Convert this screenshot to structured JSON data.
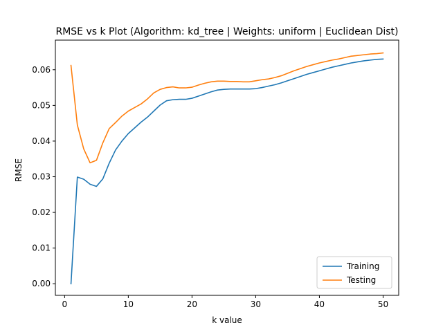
{
  "chart_data": {
    "type": "line",
    "title": "RMSE vs k Plot (Algorithm: kd_tree | Weights: uniform | Euclidean Dist)",
    "xlabel": "k value",
    "ylabel": "RMSE",
    "xlim": [
      -1.45,
      52.45
    ],
    "ylim": [
      -0.00325,
      0.0683
    ],
    "xticks": [
      0,
      10,
      20,
      30,
      40,
      50
    ],
    "xtick_labels": [
      "0",
      "10",
      "20",
      "30",
      "40",
      "50"
    ],
    "yticks": [
      0.0,
      0.01,
      0.02,
      0.03,
      0.04,
      0.05,
      0.06
    ],
    "ytick_labels": [
      "0.00",
      "0.01",
      "0.02",
      "0.03",
      "0.04",
      "0.05",
      "0.06"
    ],
    "grid": false,
    "legend_position": "lower-right",
    "x": [
      1,
      2,
      3,
      4,
      5,
      6,
      7,
      8,
      9,
      10,
      11,
      12,
      13,
      14,
      15,
      16,
      17,
      18,
      19,
      20,
      21,
      22,
      23,
      24,
      25,
      26,
      27,
      28,
      29,
      30,
      31,
      32,
      33,
      34,
      35,
      36,
      37,
      38,
      39,
      40,
      41,
      42,
      43,
      44,
      45,
      46,
      47,
      48,
      49,
      50
    ],
    "series": [
      {
        "name": "Training",
        "color": "#1f77b4",
        "values": [
          0.0,
          0.0299,
          0.0293,
          0.0279,
          0.0273,
          0.0294,
          0.0338,
          0.0375,
          0.04,
          0.0421,
          0.0437,
          0.0453,
          0.0467,
          0.0484,
          0.0501,
          0.0513,
          0.0516,
          0.0517,
          0.0517,
          0.052,
          0.0526,
          0.0532,
          0.0538,
          0.0543,
          0.0545,
          0.0546,
          0.0546,
          0.0546,
          0.0546,
          0.0547,
          0.055,
          0.0554,
          0.0558,
          0.0563,
          0.0569,
          0.0575,
          0.0581,
          0.0587,
          0.0592,
          0.0597,
          0.0602,
          0.0607,
          0.0611,
          0.0615,
          0.0619,
          0.0622,
          0.0625,
          0.0627,
          0.0629,
          0.063
        ]
      },
      {
        "name": "Testing",
        "color": "#ff7f0e",
        "values": [
          0.0612,
          0.0445,
          0.0378,
          0.0339,
          0.0346,
          0.0395,
          0.0435,
          0.0452,
          0.047,
          0.0484,
          0.0494,
          0.0504,
          0.0518,
          0.0535,
          0.0545,
          0.055,
          0.0552,
          0.0549,
          0.0549,
          0.0551,
          0.0557,
          0.0562,
          0.0566,
          0.0568,
          0.0568,
          0.0567,
          0.0567,
          0.0566,
          0.0566,
          0.0569,
          0.0572,
          0.0574,
          0.0578,
          0.0583,
          0.059,
          0.0597,
          0.0603,
          0.0609,
          0.0614,
          0.0619,
          0.0623,
          0.0627,
          0.063,
          0.0634,
          0.0638,
          0.064,
          0.0642,
          0.0644,
          0.0645,
          0.0647
        ]
      }
    ]
  }
}
